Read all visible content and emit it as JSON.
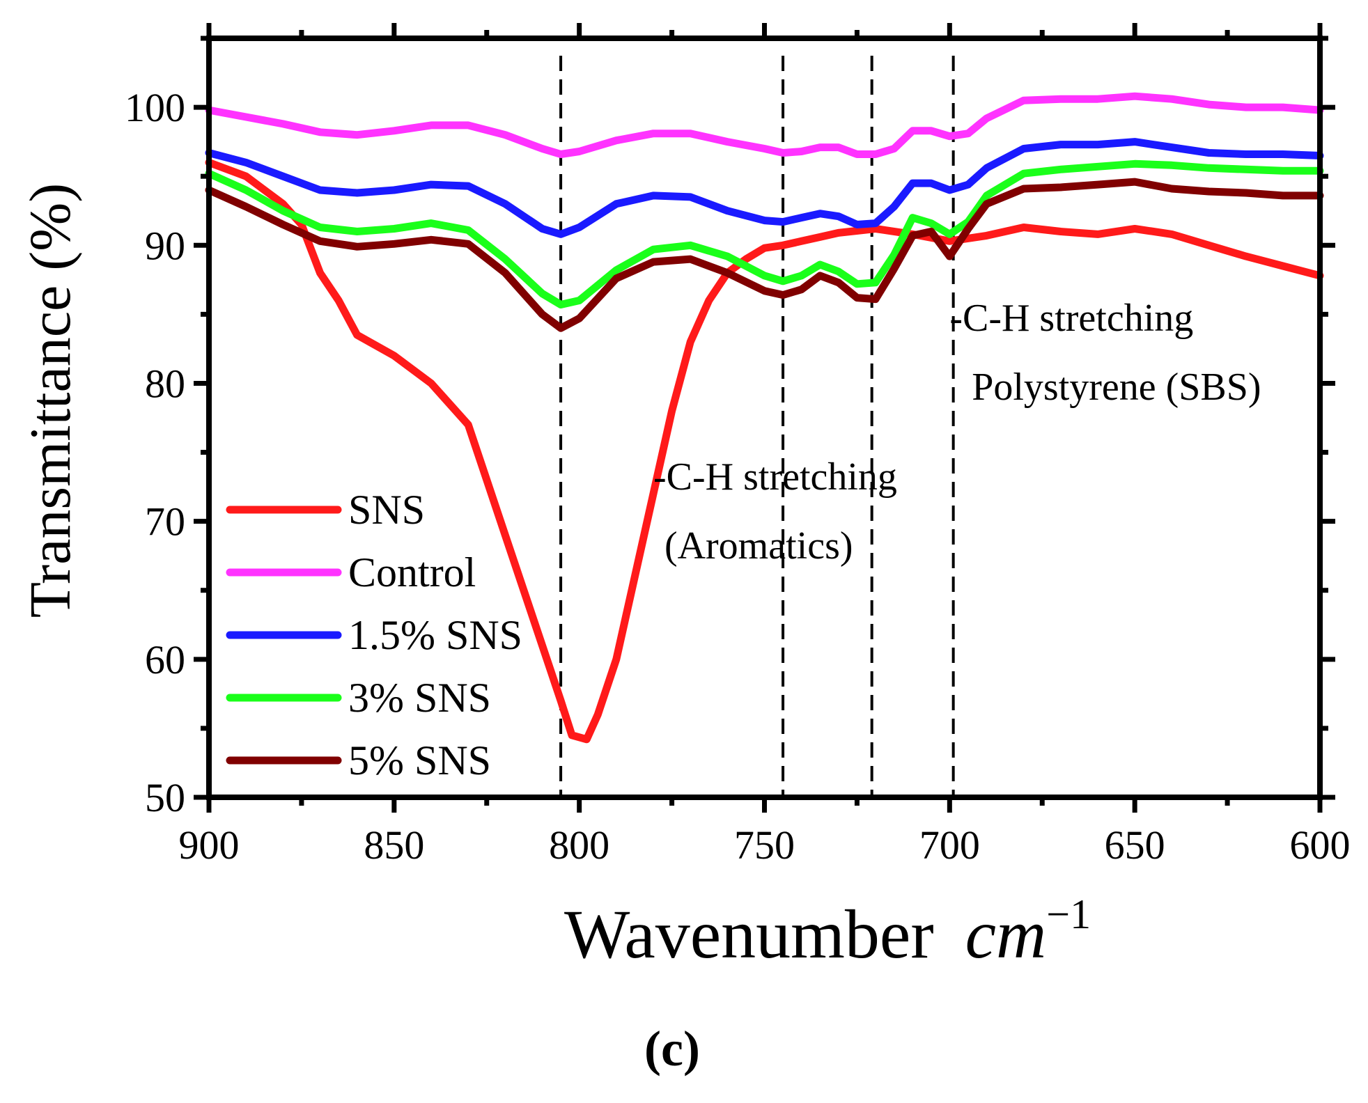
{
  "chart_data": {
    "type": "line",
    "xlabel_text": "Wavenumber",
    "xlabel_unit_base": "cm",
    "xlabel_unit_exp": "−1",
    "ylabel": "Transmittance (%)",
    "xlim": [
      900,
      600
    ],
    "ylim": [
      50,
      105
    ],
    "x_ticks": [
      900,
      850,
      800,
      750,
      700,
      650,
      600
    ],
    "y_ticks": [
      50,
      60,
      70,
      80,
      90,
      100
    ],
    "panel_label": "(c)",
    "series": [
      {
        "name": "SNS",
        "color": "#ff1a1a",
        "points": [
          [
            900,
            96
          ],
          [
            890,
            95
          ],
          [
            880,
            93
          ],
          [
            875,
            91.5
          ],
          [
            870,
            88
          ],
          [
            865,
            86
          ],
          [
            860,
            83.5
          ],
          [
            850,
            82
          ],
          [
            840,
            80
          ],
          [
            830,
            77
          ],
          [
            825,
            73
          ],
          [
            820,
            69
          ],
          [
            815,
            65
          ],
          [
            810,
            61
          ],
          [
            805,
            57
          ],
          [
            802,
            54.5
          ],
          [
            798,
            54.2
          ],
          [
            795,
            56
          ],
          [
            790,
            60
          ],
          [
            785,
            66
          ],
          [
            780,
            72
          ],
          [
            775,
            78
          ],
          [
            770,
            83
          ],
          [
            765,
            86
          ],
          [
            760,
            88
          ],
          [
            755,
            89
          ],
          [
            750,
            89.8
          ],
          [
            745,
            90
          ],
          [
            740,
            90.3
          ],
          [
            735,
            90.6
          ],
          [
            730,
            90.9
          ],
          [
            720,
            91.2
          ],
          [
            710,
            90.8
          ],
          [
            700,
            90.3
          ],
          [
            690,
            90.7
          ],
          [
            680,
            91.3
          ],
          [
            670,
            91
          ],
          [
            660,
            90.8
          ],
          [
            650,
            91.2
          ],
          [
            640,
            90.8
          ],
          [
            630,
            90
          ],
          [
            620,
            89.2
          ],
          [
            610,
            88.5
          ],
          [
            600,
            87.8
          ]
        ]
      },
      {
        "name": "Control",
        "color": "#ff33ff",
        "points": [
          [
            900,
            99.8
          ],
          [
            890,
            99.3
          ],
          [
            880,
            98.8
          ],
          [
            870,
            98.2
          ],
          [
            860,
            98
          ],
          [
            850,
            98.3
          ],
          [
            840,
            98.7
          ],
          [
            830,
            98.7
          ],
          [
            820,
            98
          ],
          [
            810,
            97
          ],
          [
            805,
            96.6
          ],
          [
            800,
            96.8
          ],
          [
            790,
            97.6
          ],
          [
            780,
            98.1
          ],
          [
            770,
            98.1
          ],
          [
            760,
            97.5
          ],
          [
            750,
            97
          ],
          [
            745,
            96.7
          ],
          [
            740,
            96.8
          ],
          [
            735,
            97.1
          ],
          [
            730,
            97.1
          ],
          [
            725,
            96.6
          ],
          [
            720,
            96.6
          ],
          [
            715,
            97
          ],
          [
            710,
            98.3
          ],
          [
            705,
            98.3
          ],
          [
            700,
            97.9
          ],
          [
            695,
            98.1
          ],
          [
            690,
            99.2
          ],
          [
            680,
            100.5
          ],
          [
            670,
            100.6
          ],
          [
            660,
            100.6
          ],
          [
            650,
            100.8
          ],
          [
            640,
            100.6
          ],
          [
            630,
            100.2
          ],
          [
            620,
            100
          ],
          [
            610,
            100
          ],
          [
            600,
            99.8
          ]
        ]
      },
      {
        "name": "1.5% SNS",
        "color": "#1a1aff",
        "points": [
          [
            900,
            96.7
          ],
          [
            890,
            96
          ],
          [
            880,
            95
          ],
          [
            870,
            94
          ],
          [
            860,
            93.8
          ],
          [
            850,
            94
          ],
          [
            840,
            94.4
          ],
          [
            830,
            94.3
          ],
          [
            820,
            93
          ],
          [
            810,
            91.2
          ],
          [
            805,
            90.8
          ],
          [
            800,
            91.3
          ],
          [
            790,
            93
          ],
          [
            780,
            93.6
          ],
          [
            770,
            93.5
          ],
          [
            760,
            92.5
          ],
          [
            750,
            91.8
          ],
          [
            745,
            91.7
          ],
          [
            740,
            92
          ],
          [
            735,
            92.3
          ],
          [
            730,
            92.1
          ],
          [
            725,
            91.5
          ],
          [
            720,
            91.6
          ],
          [
            715,
            92.8
          ],
          [
            710,
            94.5
          ],
          [
            705,
            94.5
          ],
          [
            700,
            94
          ],
          [
            695,
            94.4
          ],
          [
            690,
            95.6
          ],
          [
            680,
            97
          ],
          [
            670,
            97.3
          ],
          [
            660,
            97.3
          ],
          [
            650,
            97.5
          ],
          [
            640,
            97.1
          ],
          [
            630,
            96.7
          ],
          [
            620,
            96.6
          ],
          [
            610,
            96.6
          ],
          [
            600,
            96.5
          ]
        ]
      },
      {
        "name": "3% SNS",
        "color": "#1aff1a",
        "points": [
          [
            900,
            95.2
          ],
          [
            890,
            94
          ],
          [
            880,
            92.5
          ],
          [
            870,
            91.3
          ],
          [
            860,
            91
          ],
          [
            850,
            91.2
          ],
          [
            840,
            91.6
          ],
          [
            830,
            91.1
          ],
          [
            820,
            89
          ],
          [
            810,
            86.5
          ],
          [
            805,
            85.7
          ],
          [
            800,
            86
          ],
          [
            790,
            88.2
          ],
          [
            780,
            89.7
          ],
          [
            770,
            90
          ],
          [
            760,
            89.2
          ],
          [
            750,
            87.8
          ],
          [
            745,
            87.4
          ],
          [
            740,
            87.8
          ],
          [
            735,
            88.6
          ],
          [
            730,
            88.1
          ],
          [
            725,
            87.2
          ],
          [
            720,
            87.3
          ],
          [
            715,
            89.3
          ],
          [
            710,
            92
          ],
          [
            705,
            91.6
          ],
          [
            700,
            90.8
          ],
          [
            695,
            91.7
          ],
          [
            690,
            93.6
          ],
          [
            680,
            95.2
          ],
          [
            670,
            95.5
          ],
          [
            660,
            95.7
          ],
          [
            650,
            95.9
          ],
          [
            640,
            95.8
          ],
          [
            630,
            95.6
          ],
          [
            620,
            95.5
          ],
          [
            610,
            95.4
          ],
          [
            600,
            95.4
          ]
        ]
      },
      {
        "name": "5% SNS",
        "color": "#800000",
        "points": [
          [
            900,
            94
          ],
          [
            890,
            92.8
          ],
          [
            880,
            91.5
          ],
          [
            870,
            90.3
          ],
          [
            860,
            89.9
          ],
          [
            850,
            90.1
          ],
          [
            840,
            90.4
          ],
          [
            830,
            90.1
          ],
          [
            820,
            88
          ],
          [
            810,
            85
          ],
          [
            805,
            84
          ],
          [
            800,
            84.7
          ],
          [
            790,
            87.6
          ],
          [
            780,
            88.8
          ],
          [
            770,
            89
          ],
          [
            760,
            88
          ],
          [
            750,
            86.7
          ],
          [
            745,
            86.4
          ],
          [
            740,
            86.8
          ],
          [
            735,
            87.8
          ],
          [
            730,
            87.3
          ],
          [
            725,
            86.2
          ],
          [
            720,
            86.1
          ],
          [
            715,
            88.3
          ],
          [
            710,
            90.7
          ],
          [
            705,
            91
          ],
          [
            700,
            89.2
          ],
          [
            695,
            91.2
          ],
          [
            690,
            93
          ],
          [
            680,
            94.1
          ],
          [
            670,
            94.2
          ],
          [
            660,
            94.4
          ],
          [
            650,
            94.6
          ],
          [
            640,
            94.1
          ],
          [
            630,
            93.9
          ],
          [
            620,
            93.8
          ],
          [
            610,
            93.6
          ],
          [
            600,
            93.6
          ]
        ]
      }
    ],
    "vlines": [
      805,
      745,
      721,
      699
    ],
    "annotations": [
      {
        "text": "-C-H stretching",
        "x": 780,
        "y": 72.3
      },
      {
        "text": "(Aromatics)",
        "x": 777,
        "y": 67.3
      },
      {
        "text": "-C-H stretching",
        "x": 700,
        "y": 83.8
      },
      {
        "text": "Polystyrene (SBS)",
        "x": 694,
        "y": 78.8
      }
    ],
    "legend_position": "lower-left"
  }
}
